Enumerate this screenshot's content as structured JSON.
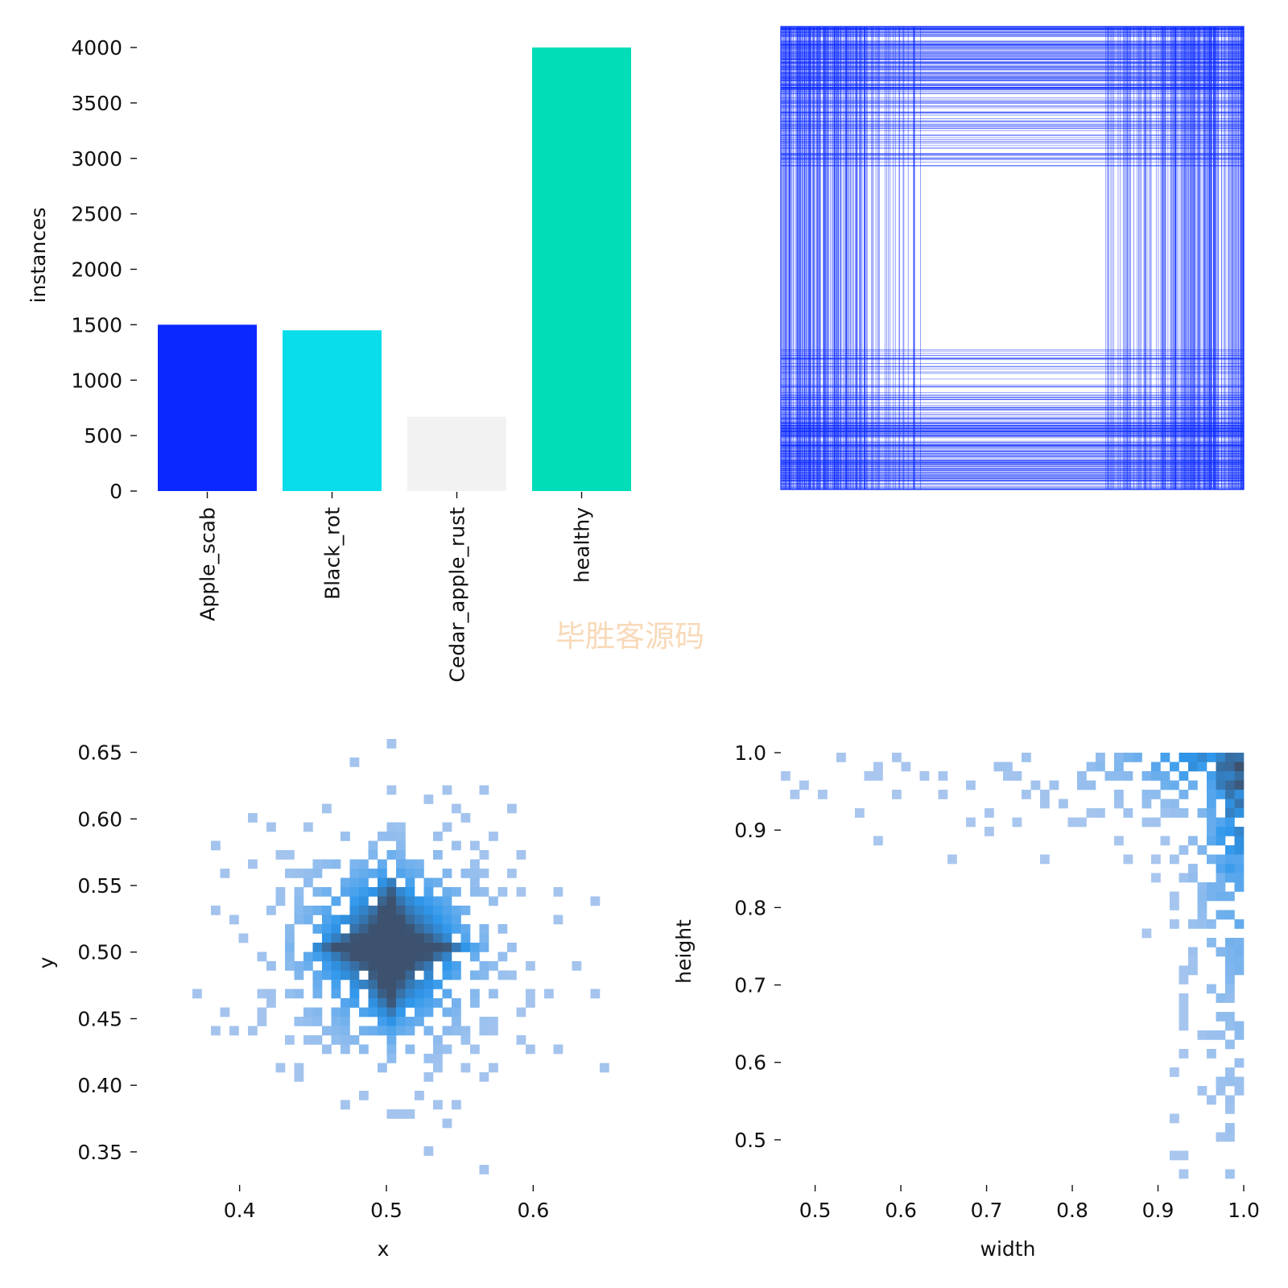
{
  "watermark": "毕胜客源码",
  "chart_data": [
    {
      "type": "bar",
      "categories": [
        "Apple_scab",
        "Black_rot",
        "Cedar_apple_rust",
        "healthy"
      ],
      "values": [
        1500,
        1450,
        670,
        4000
      ],
      "colors": [
        "#0a28ff",
        "#0addea",
        "#f2f2f2",
        "#00ddb7"
      ],
      "xlabel": "",
      "ylabel": "instances",
      "ylim": [
        0,
        4000
      ],
      "yticks": [
        "0",
        "500",
        "1000",
        "1500",
        "2000",
        "2500",
        "3000",
        "3500",
        "4000"
      ],
      "grid": false
    },
    {
      "type": "box-overlay",
      "color": "#0a28ff"
    },
    {
      "type": "heatmap",
      "xlabel": "x",
      "ylabel": "y",
      "xlim": [
        0.33,
        0.67
      ],
      "ylim": [
        0.33,
        0.66
      ],
      "xticks": [
        "0.4",
        "0.5",
        "0.6"
      ],
      "yticks": [
        "0.35",
        "0.40",
        "0.45",
        "0.50",
        "0.55",
        "0.60",
        "0.65"
      ],
      "peak": [
        0.502,
        0.503
      ],
      "color_low": "#a9c6ee",
      "color_mid": "#2f97ec",
      "color_high": "#3d526f"
    },
    {
      "type": "heatmap",
      "xlabel": "width",
      "ylabel": "height",
      "xlim": [
        0.46,
        1.0
      ],
      "ylim": [
        0.45,
        1.0
      ],
      "xticks": [
        "0.5",
        "0.6",
        "0.7",
        "0.8",
        "0.9",
        "1.0"
      ],
      "yticks": [
        "0.5",
        "0.6",
        "0.7",
        "0.8",
        "0.9",
        "1.0"
      ],
      "peak": [
        1.0,
        1.0
      ],
      "color_low": "#a9c6ee",
      "color_mid": "#2f97ec",
      "color_high": "#3d526f"
    }
  ]
}
